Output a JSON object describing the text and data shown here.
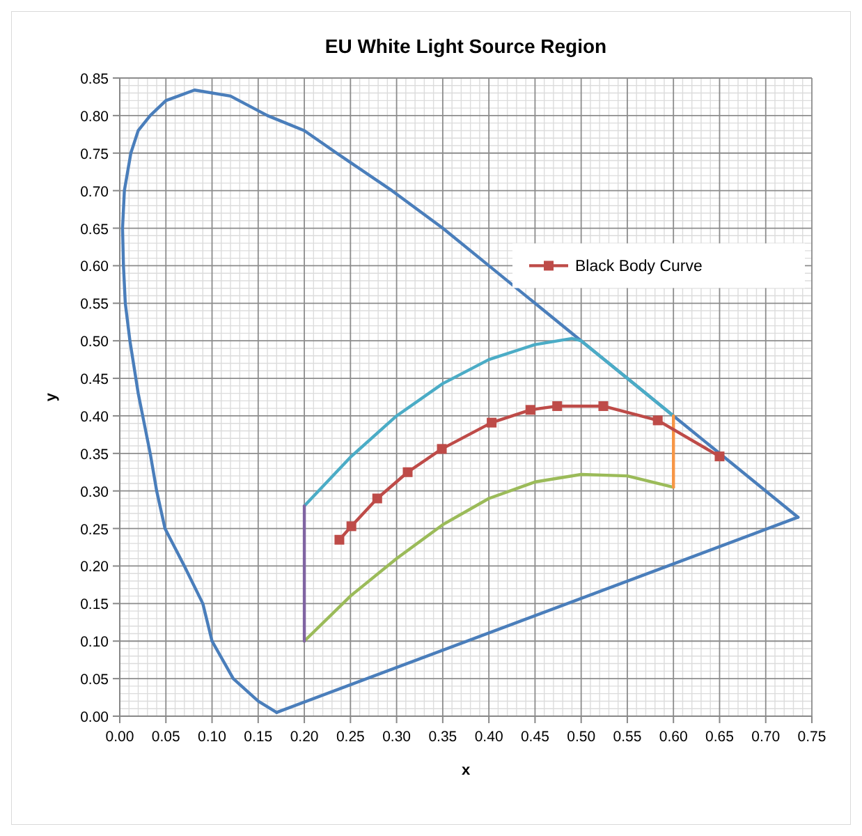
{
  "chart_data": {
    "type": "line",
    "title": "EU White Light Source Region",
    "xlabel": "x",
    "ylabel": "y",
    "xlim": [
      0,
      0.75
    ],
    "ylim": [
      0,
      0.85
    ],
    "xticks": [
      {
        "value": 0,
        "label": "0.00"
      },
      {
        "value": 0.05,
        "label": "0.05"
      },
      {
        "value": 0.1,
        "label": "0.10"
      },
      {
        "value": 0.15,
        "label": "0.15"
      },
      {
        "value": 0.2,
        "label": "0.20"
      },
      {
        "value": 0.25,
        "label": "0.25"
      },
      {
        "value": 0.3,
        "label": "0.30"
      },
      {
        "value": 0.35,
        "label": "0.35"
      },
      {
        "value": 0.4,
        "label": "0.40"
      },
      {
        "value": 0.45,
        "label": "0.45"
      },
      {
        "value": 0.5,
        "label": "0.50"
      },
      {
        "value": 0.55,
        "label": "0.55"
      },
      {
        "value": 0.6,
        "label": "0.60"
      },
      {
        "value": 0.65,
        "label": "0.65"
      },
      {
        "value": 0.7,
        "label": "0.70"
      },
      {
        "value": 0.75,
        "label": "0.75"
      }
    ],
    "yticks": [
      {
        "value": 0,
        "label": "0.00"
      },
      {
        "value": 0.05,
        "label": "0.05"
      },
      {
        "value": 0.1,
        "label": "0.10"
      },
      {
        "value": 0.15,
        "label": "0.15"
      },
      {
        "value": 0.2,
        "label": "0.20"
      },
      {
        "value": 0.25,
        "label": "0.25"
      },
      {
        "value": 0.3,
        "label": "0.30"
      },
      {
        "value": 0.35,
        "label": "0.35"
      },
      {
        "value": 0.4,
        "label": "0.40"
      },
      {
        "value": 0.45,
        "label": "0.45"
      },
      {
        "value": 0.5,
        "label": "0.50"
      },
      {
        "value": 0.55,
        "label": "0.55"
      },
      {
        "value": 0.6,
        "label": "0.60"
      },
      {
        "value": 0.65,
        "label": "0.65"
      },
      {
        "value": 0.7,
        "label": "0.70"
      },
      {
        "value": 0.75,
        "label": "0.75"
      },
      {
        "value": 0.8,
        "label": "0.80"
      },
      {
        "value": 0.85,
        "label": "0.85"
      }
    ],
    "grid": true,
    "legend": "right",
    "line_style": "solid",
    "series": [
      {
        "color": "#4a7ebb",
        "marker": "none",
        "x": [
          0.17,
          0.15,
          0.123,
          0.1,
          0.09,
          0.07,
          0.049,
          0.04,
          0.033,
          0.02,
          0.011,
          0.006,
          0.004,
          0.003,
          0.005,
          0.012,
          0.02,
          0.033,
          0.05,
          0.081,
          0.12,
          0.16,
          0.2,
          0.235,
          0.295,
          0.35,
          0.4,
          0.45,
          0.5,
          0.55,
          0.6,
          0.65,
          0.7,
          0.735
        ],
        "values": [
          0.005,
          0.02,
          0.05,
          0.1,
          0.15,
          0.2,
          0.25,
          0.3,
          0.35,
          0.43,
          0.5,
          0.55,
          0.6,
          0.65,
          0.7,
          0.75,
          0.78,
          0.8,
          0.82,
          0.834,
          0.826,
          0.8,
          0.78,
          0.75,
          0.7,
          0.65,
          0.6,
          0.55,
          0.5,
          0.45,
          0.4,
          0.35,
          0.3,
          0.265
        ]
      },
      {
        "color": "#4a7ebb",
        "marker": "none",
        "x": [
          0.17,
          0.735
        ],
        "values": [
          0.005,
          0.265
        ]
      },
      {
        "color": "#4bacc6",
        "marker": "none",
        "x": [
          0.2,
          0.25,
          0.3,
          0.35,
          0.4,
          0.45,
          0.49,
          0.5,
          0.55,
          0.6
        ],
        "values": [
          0.28,
          0.345,
          0.4,
          0.443,
          0.475,
          0.495,
          0.503,
          0.5,
          0.45,
          0.4
        ]
      },
      {
        "color": "#9bbb59",
        "marker": "none",
        "x": [
          0.2,
          0.25,
          0.3,
          0.35,
          0.4,
          0.45,
          0.5,
          0.55,
          0.6
        ],
        "values": [
          0.1,
          0.16,
          0.21,
          0.255,
          0.29,
          0.312,
          0.322,
          0.32,
          0.305
        ]
      },
      {
        "color": "#8064a2",
        "marker": "none",
        "x": [
          0.2,
          0.2
        ],
        "values": [
          0.1,
          0.28
        ]
      },
      {
        "color": "#f79646",
        "marker": "none",
        "x": [
          0.6,
          0.6
        ],
        "values": [
          0.305,
          0.4
        ]
      },
      {
        "name": "Black Body Curve",
        "color": "#be4b48",
        "marker": "square",
        "x": [
          0.238,
          0.251,
          0.279,
          0.312,
          0.349,
          0.403,
          0.445,
          0.474,
          0.524,
          0.583,
          0.65
        ],
        "values": [
          0.235,
          0.253,
          0.29,
          0.325,
          0.356,
          0.391,
          0.408,
          0.413,
          0.413,
          0.394,
          0.346
        ]
      }
    ]
  }
}
